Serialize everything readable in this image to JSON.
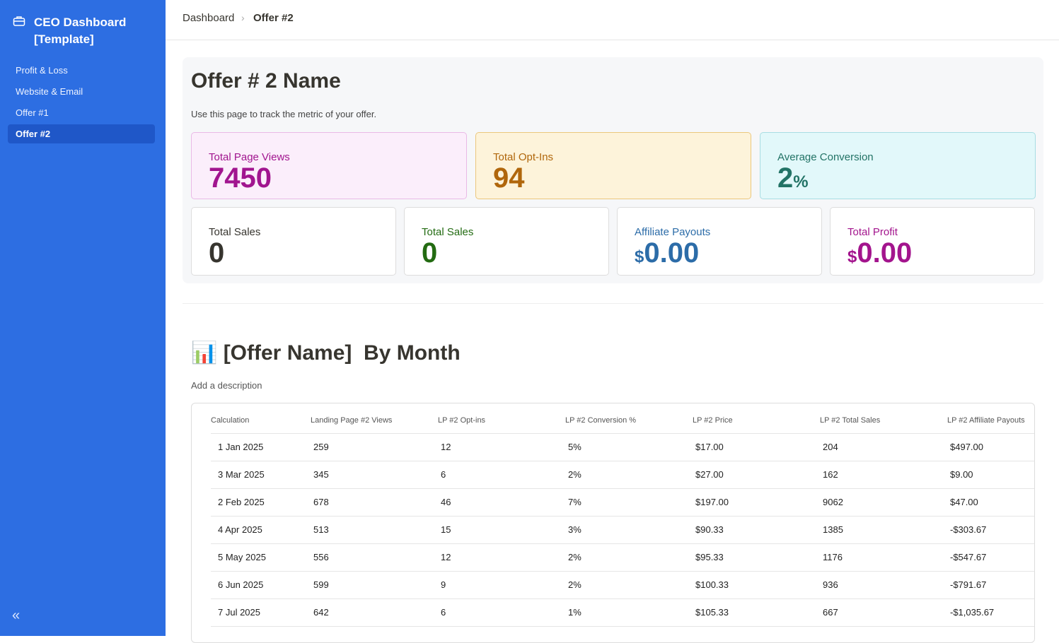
{
  "sidebar": {
    "title": "CEO Dashboard [Template]",
    "nav": [
      "Profit & Loss",
      "Website & Email",
      "Offer #1",
      "Offer #2"
    ],
    "active": 3
  },
  "breadcrumb": [
    "Dashboard",
    "Offer #2"
  ],
  "header": {
    "title": "Offer # 2 Name",
    "description": "Use this page to track the metric of your offer."
  },
  "kpis_top": [
    {
      "label": "Total Page Views",
      "value": "7450",
      "color": "#a1158f",
      "bg": "#fbeefb",
      "border": "#e9b9e6"
    },
    {
      "label": "Total Opt-Ins",
      "value": "94",
      "color": "#b0660b",
      "bg": "#fdf3da",
      "border": "#ebc77c"
    },
    {
      "label": "Average Conversion",
      "value": "2",
      "suffix": "%",
      "color": "#227366",
      "bg": "#e2f8fa",
      "border": "#a8dde3"
    }
  ],
  "kpis_bottom": [
    {
      "label": "Total Sales",
      "value": "0",
      "color": "#37352f"
    },
    {
      "label": "Total Sales",
      "value": "0",
      "color": "#236b12"
    },
    {
      "label": "Affiliate Payouts",
      "prefix": "$",
      "value": "0.00",
      "color": "#2c6ca8"
    },
    {
      "label": "Total Profit",
      "prefix": "$",
      "value": "0.00",
      "color": "#a3148d"
    }
  ],
  "section": {
    "title": "📊 [Offer Name]  By Month",
    "description": "Add a description"
  },
  "table": {
    "columns": [
      "Calculation",
      "Landing Page #2 Views",
      "LP #2 Opt-ins",
      "LP #2 Conversion %",
      "LP #2 Price",
      "LP #2 Total Sales",
      "LP #2 Affiliate Payouts"
    ],
    "rows": [
      [
        "1 Jan 2025",
        "259",
        "12",
        "5%",
        "$17.00",
        "204",
        "$497.00"
      ],
      [
        "3 Mar 2025",
        "345",
        "6",
        "2%",
        "$27.00",
        "162",
        "$9.00"
      ],
      [
        "2 Feb 2025",
        "678",
        "46",
        "7%",
        "$197.00",
        "9062",
        "$47.00"
      ],
      [
        "4 Apr 2025",
        "513",
        "15",
        "3%",
        "$90.33",
        "1385",
        "-$303.67"
      ],
      [
        "5 May 2025",
        "556",
        "12",
        "2%",
        "$95.33",
        "1176",
        "-$547.67"
      ],
      [
        "6 Jun 2025",
        "599",
        "9",
        "2%",
        "$100.33",
        "936",
        "-$791.67"
      ],
      [
        "7 Jul 2025",
        "642",
        "6",
        "1%",
        "$105.33",
        "667",
        "-$1,035.67"
      ]
    ]
  }
}
